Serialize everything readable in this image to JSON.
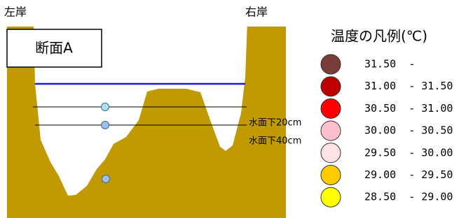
{
  "labels": {
    "left_bank": "左岸",
    "right_bank": "右岸",
    "section": "断面A",
    "depth_20": "水面下20cm",
    "depth_40": "水面下40cm"
  },
  "legend": {
    "title": "温度の凡例(℃)",
    "items": [
      {
        "label": "31.50  -",
        "color": "#7a3b3b"
      },
      {
        "label": "31.00  - 31.50",
        "color": "#c00000"
      },
      {
        "label": "30.50  - 31.00",
        "color": "#ff0000"
      },
      {
        "label": "30.00  - 30.50",
        "color": "#ffc0cc"
      },
      {
        "label": "29.50  - 30.00",
        "color": "#ffe2e2"
      },
      {
        "label": "29.00  - 29.50",
        "color": "#ffcc00"
      },
      {
        "label": "28.50  - 29.00",
        "color": "#ffff00"
      }
    ]
  }
}
